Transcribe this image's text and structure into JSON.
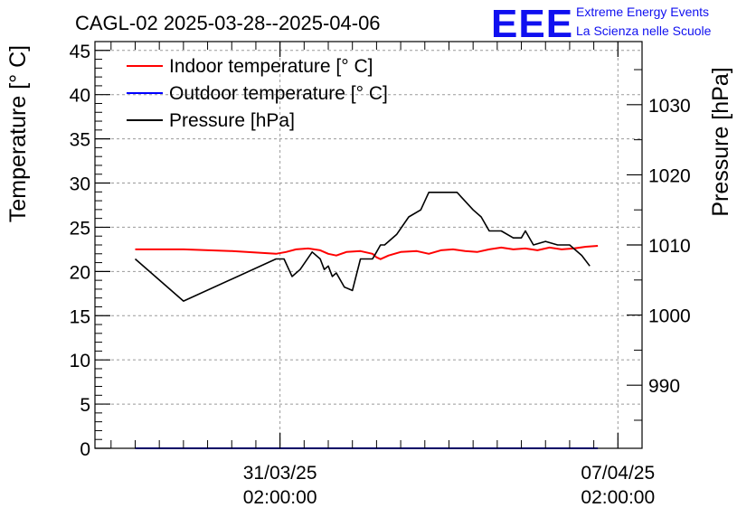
{
  "title": "CAGL-02 2025-03-28--2025-04-06",
  "logo": {
    "mark": "EEE",
    "line1": "Extreme Energy Events",
    "line2": "La Scienza nelle Scuole"
  },
  "chart_data": {
    "type": "line",
    "title": "CAGL-02 2025-03-28--2025-04-06",
    "ylabel_left": "Temperature [° C]",
    "ylabel_right": "Pressure [hPa]",
    "xlabel": "",
    "x_ticks": [
      {
        "t": 72.0,
        "line1": "31/03/25",
        "line2": "02:00:00"
      },
      {
        "t": 240.0,
        "line1": "07/04/25",
        "line2": "02:00:00"
      }
    ],
    "xlim": [
      -20,
      252
    ],
    "ylim_left": [
      0,
      46
    ],
    "ylim_right": [
      981,
      1039
    ],
    "y_ticks_left": [
      0,
      5,
      10,
      15,
      20,
      25,
      30,
      35,
      40,
      45
    ],
    "y_ticks_right": [
      990,
      1000,
      1010,
      1020,
      1030
    ],
    "grid": true,
    "legend_position": "top-left",
    "colors": {
      "indoor": "#ff0000",
      "outdoor": "#0000ff",
      "pressure": "#000000"
    },
    "series": [
      {
        "name": "Indoor temperature [° C]",
        "axis": "left",
        "color": "#ff0000",
        "points": [
          [
            0,
            22.5
          ],
          [
            24,
            22.5
          ],
          [
            48,
            22.3
          ],
          [
            70,
            22.0
          ],
          [
            75,
            22.2
          ],
          [
            80,
            22.5
          ],
          [
            86,
            22.6
          ],
          [
            92,
            22.4
          ],
          [
            96,
            22.0
          ],
          [
            100,
            21.8
          ],
          [
            105,
            22.2
          ],
          [
            112,
            22.3
          ],
          [
            118,
            22.0
          ],
          [
            120,
            21.6
          ],
          [
            122,
            21.4
          ],
          [
            126,
            21.8
          ],
          [
            132,
            22.2
          ],
          [
            140,
            22.3
          ],
          [
            146,
            22.0
          ],
          [
            152,
            22.4
          ],
          [
            158,
            22.5
          ],
          [
            164,
            22.3
          ],
          [
            170,
            22.2
          ],
          [
            176,
            22.5
          ],
          [
            182,
            22.7
          ],
          [
            188,
            22.5
          ],
          [
            194,
            22.6
          ],
          [
            200,
            22.4
          ],
          [
            206,
            22.7
          ],
          [
            212,
            22.5
          ],
          [
            218,
            22.6
          ],
          [
            224,
            22.8
          ],
          [
            230,
            22.9
          ]
        ]
      },
      {
        "name": "Outdoor temperature [° C]",
        "axis": "left",
        "color": "#0000ff",
        "points": [
          [
            0,
            0
          ],
          [
            230,
            0
          ]
        ]
      },
      {
        "name": "Pressure [hPa]",
        "axis": "right",
        "color": "#000000",
        "points": [
          [
            0,
            1008.0
          ],
          [
            24,
            1002.0
          ],
          [
            70,
            1008.0
          ],
          [
            74,
            1008.0
          ],
          [
            78,
            1005.5
          ],
          [
            82,
            1006.5
          ],
          [
            88,
            1009.0
          ],
          [
            92,
            1008.0
          ],
          [
            94,
            1006.5
          ],
          [
            96,
            1007.0
          ],
          [
            98,
            1005.5
          ],
          [
            100,
            1006.0
          ],
          [
            104,
            1004.0
          ],
          [
            108,
            1003.5
          ],
          [
            112,
            1008.0
          ],
          [
            118,
            1008.0
          ],
          [
            120,
            1009.0
          ],
          [
            122,
            1010.0
          ],
          [
            124,
            1010.0
          ],
          [
            130,
            1011.5
          ],
          [
            136,
            1014.0
          ],
          [
            142,
            1015.0
          ],
          [
            146,
            1017.5
          ],
          [
            150,
            1017.5
          ],
          [
            160,
            1017.5
          ],
          [
            168,
            1015.0
          ],
          [
            172,
            1014.0
          ],
          [
            176,
            1012.0
          ],
          [
            182,
            1012.0
          ],
          [
            188,
            1011.0
          ],
          [
            192,
            1011.0
          ],
          [
            194,
            1012.0
          ],
          [
            198,
            1010.0
          ],
          [
            204,
            1010.5
          ],
          [
            210,
            1010.0
          ],
          [
            216,
            1010.0
          ],
          [
            222,
            1008.5
          ],
          [
            226,
            1007.0
          ]
        ]
      }
    ]
  }
}
